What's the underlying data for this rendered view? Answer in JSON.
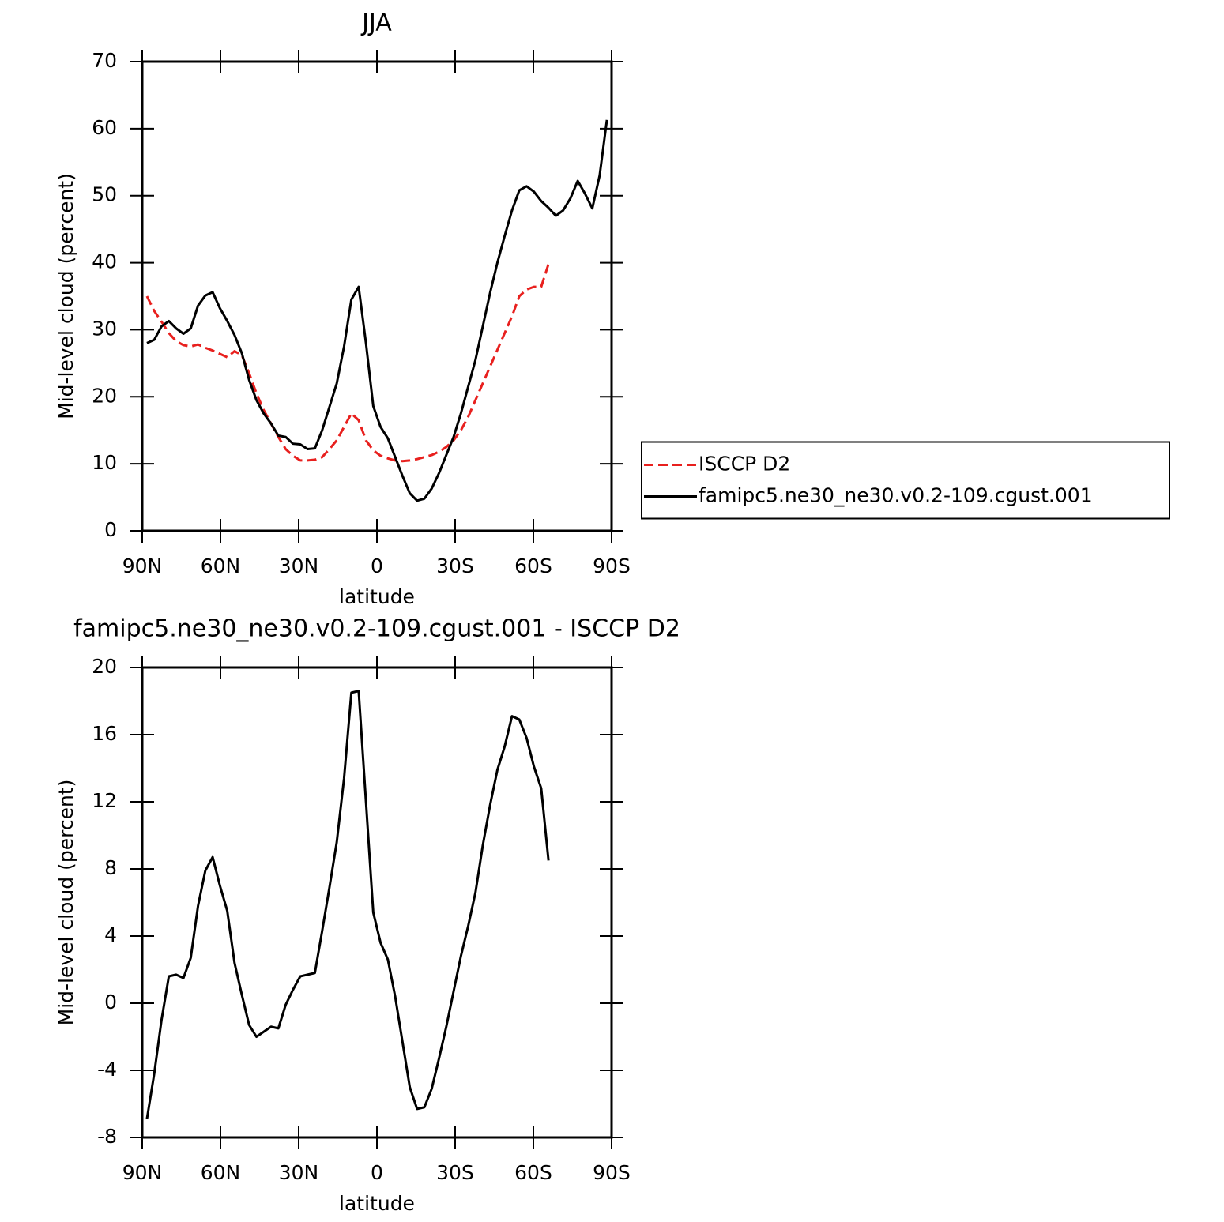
{
  "chart_data": [
    {
      "type": "line",
      "title": "JJA",
      "xlabel": "latitude",
      "ylabel": "Mid-level cloud (percent)",
      "x": [
        88.2,
        85.4,
        82.6,
        79.8,
        77.0,
        74.2,
        71.4,
        68.6,
        65.8,
        63.0,
        60.2,
        57.4,
        54.6,
        51.8,
        49.0,
        46.2,
        43.4,
        40.6,
        37.8,
        35.0,
        32.2,
        29.4,
        26.6,
        23.8,
        21.0,
        18.2,
        15.4,
        12.6,
        9.8,
        7.0,
        4.2,
        1.4,
        -1.4,
        -4.2,
        -7.0,
        -9.8,
        -12.6,
        -15.4,
        -18.2,
        -21.0,
        -23.8,
        -26.6,
        -29.4,
        -32.2,
        -35.0,
        -37.8,
        -40.6,
        -43.4,
        -46.2,
        -49.0,
        -51.8,
        -54.6,
        -57.4,
        -60.2,
        -63.0,
        -65.8,
        -68.6,
        -71.4,
        -74.2,
        -77.0,
        -79.8,
        -82.6,
        -85.4,
        -88.2
      ],
      "series": [
        {
          "name": "ISCCP D2",
          "color": "#e8201e",
          "dashed": true,
          "values": [
            35.0,
            32.8,
            31.2,
            29.5,
            28.3,
            27.7,
            27.5,
            27.8,
            27.3,
            26.9,
            26.4,
            25.9,
            26.8,
            26.2,
            23.5,
            20.5,
            18.0,
            16.0,
            14.0,
            12.2,
            11.2,
            10.5,
            10.5,
            10.6,
            11.0,
            12.2,
            13.5,
            15.5,
            17.5,
            16.5,
            13.5,
            12.0,
            11.2,
            10.8,
            10.5,
            10.4,
            10.5,
            10.7,
            11.0,
            11.3,
            11.8,
            12.5,
            13.5,
            15.0,
            17.0,
            19.5,
            22.0,
            24.5,
            27.0,
            29.5,
            32.0,
            35.0,
            36.0,
            36.4,
            36.4,
            39.8,
            null,
            null,
            null,
            null,
            null,
            null,
            null,
            null
          ]
        },
        {
          "name": "famipc5.ne30_ne30.v0.2-109.cgust.001",
          "color": "#000000",
          "dashed": false,
          "values": [
            28.0,
            28.5,
            30.5,
            31.3,
            30.2,
            29.4,
            30.2,
            33.6,
            35.1,
            35.6,
            33.2,
            31.3,
            29.2,
            26.5,
            22.5,
            19.5,
            17.5,
            16.0,
            14.2,
            14.0,
            13.0,
            12.9,
            12.2,
            12.3,
            15.0,
            18.5,
            22.0,
            27.5,
            34.5,
            36.4,
            28.0,
            18.6,
            15.5,
            13.8,
            11.0,
            8.2,
            5.6,
            4.5,
            4.8,
            6.3,
            8.6,
            11.3,
            14.0,
            17.5,
            21.5,
            25.5,
            30.5,
            35.5,
            40.0,
            44.0,
            47.8,
            50.8,
            51.4,
            50.6,
            49.2,
            48.2,
            47.0,
            47.8,
            49.6,
            52.2,
            50.3,
            48.1,
            53.0,
            61.3
          ]
        }
      ],
      "xlim": [
        90,
        -90
      ],
      "xticks": [
        {
          "value": 90,
          "label": "90N"
        },
        {
          "value": 60,
          "label": "60N"
        },
        {
          "value": 30,
          "label": "30N"
        },
        0,
        {
          "value": -30,
          "label": "30S"
        },
        {
          "value": -60,
          "label": "60S"
        },
        {
          "value": -90,
          "label": "90S"
        }
      ],
      "ylim": [
        0,
        70
      ],
      "yticks": [
        0,
        10,
        20,
        30,
        40,
        50,
        60,
        70
      ],
      "legend": "right"
    },
    {
      "type": "line",
      "title": "famipc5.ne30_ne30.v0.2-109.cgust.001 - ISCCP D2",
      "xlabel": "latitude",
      "ylabel": "Mid-level cloud (percent)",
      "x": [
        88.2,
        85.4,
        82.6,
        79.8,
        77.0,
        74.2,
        71.4,
        68.6,
        65.8,
        63.0,
        60.2,
        57.4,
        54.6,
        51.8,
        49.0,
        46.2,
        43.4,
        40.6,
        37.8,
        35.0,
        32.2,
        29.4,
        26.6,
        23.8,
        21.0,
        18.2,
        15.4,
        12.6,
        9.8,
        7.0,
        4.2,
        1.4,
        -1.4,
        -4.2,
        -7.0,
        -9.8,
        -12.6,
        -15.4,
        -18.2,
        -21.0,
        -23.8,
        -26.6,
        -29.4,
        -32.2,
        -35.0,
        -37.8,
        -40.6,
        -43.4,
        -46.2,
        -49.0,
        -51.8,
        -54.6,
        -57.4,
        -60.2,
        -63.0,
        -65.8,
        -68.6,
        -71.4,
        -74.2,
        -77.0,
        -79.8,
        -82.6,
        -85.4,
        -88.2
      ],
      "series": [
        {
          "color": "#000000",
          "dashed": false,
          "values": [
            -6.9,
            -4.2,
            -1.0,
            1.6,
            1.7,
            1.5,
            2.7,
            5.8,
            7.9,
            8.7,
            7.0,
            5.5,
            2.4,
            0.5,
            -1.3,
            -2.0,
            -1.7,
            -1.4,
            -1.5,
            -0.1,
            0.8,
            1.6,
            1.7,
            1.8,
            4.3,
            6.9,
            9.6,
            13.4,
            18.5,
            18.6,
            12.0,
            5.4,
            3.6,
            2.6,
            0.4,
            -2.3,
            -5.0,
            -6.3,
            -6.2,
            -5.1,
            -3.3,
            -1.4,
            0.7,
            2.8,
            4.6,
            6.6,
            9.4,
            11.8,
            13.9,
            15.3,
            17.1,
            16.9,
            15.8,
            14.1,
            12.8,
            8.5,
            null,
            null,
            null,
            null,
            null,
            null,
            null,
            null
          ]
        }
      ],
      "xlim": [
        90,
        -90
      ],
      "xticks": [
        {
          "value": 90,
          "label": "90N"
        },
        {
          "value": 60,
          "label": "60N"
        },
        {
          "value": 30,
          "label": "30N"
        },
        0,
        {
          "value": -30,
          "label": "30S"
        },
        {
          "value": -60,
          "label": "60S"
        },
        {
          "value": -90,
          "label": "90S"
        }
      ],
      "ylim": [
        -8,
        20
      ],
      "yticks": [
        -8,
        -4,
        0,
        4,
        8,
        12,
        16,
        20
      ]
    }
  ]
}
